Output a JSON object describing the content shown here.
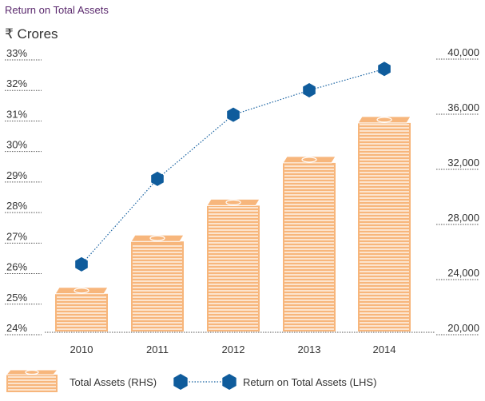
{
  "title": "Return on Total Assets",
  "units_label": "₹ Crores",
  "colors": {
    "bar": "#f7b67c",
    "bar_stripe": "#ffffff",
    "line": "#1560a0",
    "marker": "#0f5c9c",
    "title": "#5b2a6e"
  },
  "icons": {
    "bar_legend": "banknote-stack-icon",
    "marker": "hexagon-icon"
  },
  "chart_data": {
    "type": "bar",
    "categories": [
      "2010",
      "2011",
      "2012",
      "2013",
      "2014"
    ],
    "series": [
      {
        "name": "Total Assets (RHS)",
        "type": "bar",
        "axis": "right",
        "values": [
          23200,
          27000,
          29600,
          32700,
          35600
        ]
      },
      {
        "name": "Return on Total Assets (LHS)",
        "type": "line",
        "axis": "left",
        "values": [
          26.2,
          29.0,
          31.1,
          31.9,
          32.6
        ]
      }
    ],
    "left_axis": {
      "min": 24,
      "max": 33,
      "ticks": [
        "24%",
        "25%",
        "26%",
        "27%",
        "28%",
        "29%",
        "30%",
        "31%",
        "32%",
        "33%"
      ]
    },
    "right_axis": {
      "min": 20000,
      "max": 40000,
      "ticks": [
        "20,000",
        "24,000",
        "28,000",
        "32,000",
        "36,000",
        "40,000"
      ]
    },
    "grid": true,
    "legend_position": "bottom-left"
  }
}
